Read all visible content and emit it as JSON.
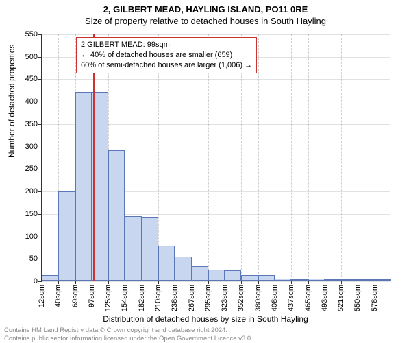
{
  "titles": {
    "line1": "2, GILBERT MEAD, HAYLING ISLAND, PO11 0RE",
    "line2": "Size of property relative to detached houses in South Hayling"
  },
  "axis": {
    "ylabel": "Number of detached properties",
    "xlabel": "Distribution of detached houses by size in South Hayling"
  },
  "chart": {
    "type": "histogram",
    "ylim": [
      0,
      550
    ],
    "ytick_step": 50,
    "bar_fill": "#c9d6ef",
    "bar_border": "#5a78b8",
    "background": "#ffffff",
    "grid_color": "#888888",
    "categories": [
      "12sqm",
      "40sqm",
      "69sqm",
      "97sqm",
      "125sqm",
      "154sqm",
      "182sqm",
      "210sqm",
      "238sqm",
      "267sqm",
      "295sqm",
      "323sqm",
      "352sqm",
      "380sqm",
      "408sqm",
      "437sqm",
      "465sqm",
      "493sqm",
      "521sqm",
      "550sqm",
      "578sqm"
    ],
    "values": [
      12,
      198,
      420,
      420,
      290,
      143,
      140,
      78,
      53,
      32,
      24,
      23,
      12,
      12,
      5,
      0,
      4,
      0,
      2,
      2,
      2
    ],
    "bar_width_ratio": 1.0
  },
  "marker": {
    "position_sqm": 99,
    "color": "#cc3333"
  },
  "annotation": {
    "lines": [
      "2 GILBERT MEAD: 99sqm",
      "← 40% of detached houses are smaller (659)",
      "60% of semi-detached houses are larger (1,006) →"
    ],
    "border_color": "#cc3333",
    "background": "#ffffff",
    "fontsize": 11
  },
  "footer": {
    "line1": "Contains HM Land Registry data © Crown copyright and database right 2024.",
    "line2": "Contains public sector information licensed under the Open Government Licence v3.0."
  }
}
